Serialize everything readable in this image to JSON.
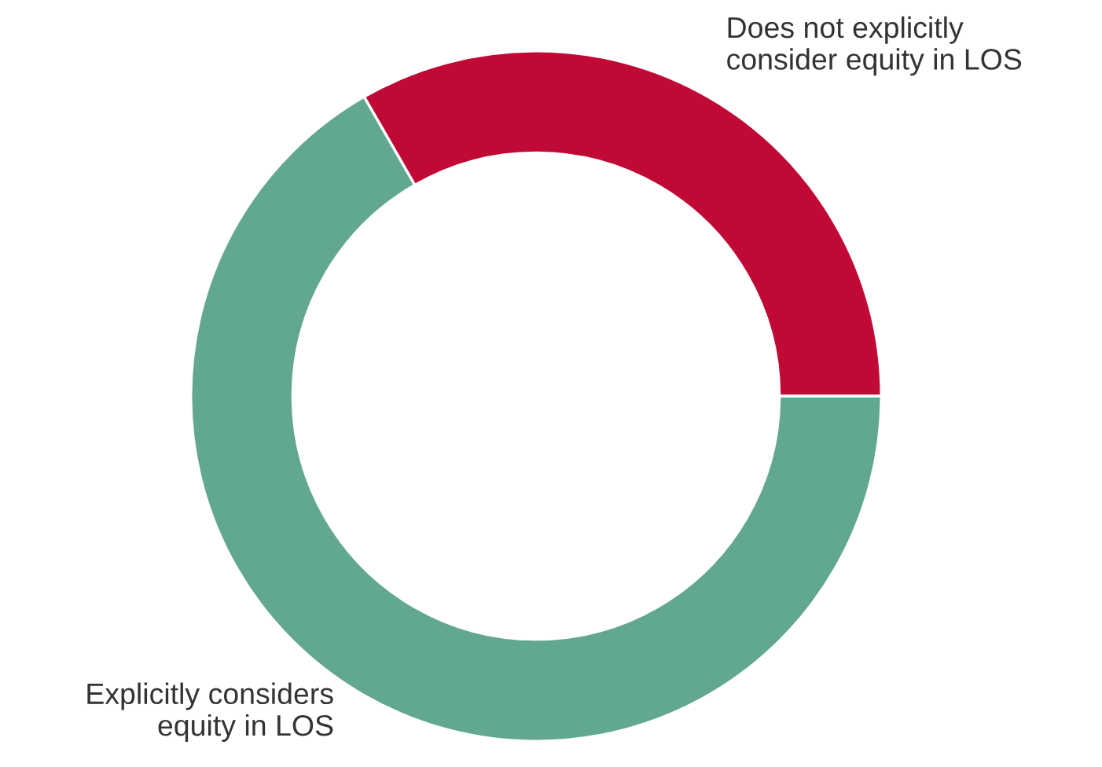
{
  "chart_data": {
    "type": "donut",
    "categories": [
      "Does not explicitly\nconsider equity in LOS",
      "Explicitly considers\nequity in LOS"
    ],
    "values": [
      33.3,
      66.7
    ],
    "colors": [
      "#c00a35",
      "#62a792"
    ],
    "legend": false
  }
}
